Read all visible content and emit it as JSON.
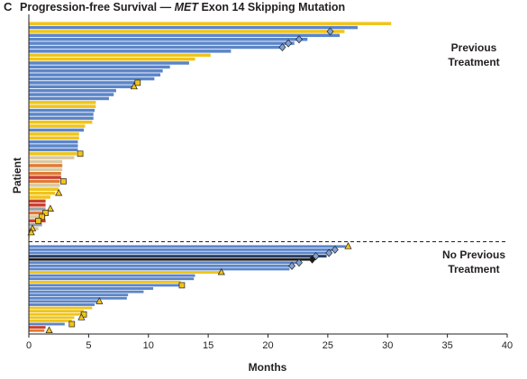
{
  "panel_letter": "C",
  "title_prefix": "Progression-free Survival — ",
  "title_gene": "MET",
  "title_suffix": " Exon 14 Skipping Mutation",
  "colors": {
    "blue": "#5b85c8",
    "yellow": "#f0c419",
    "tan": "#d9c9a3",
    "orange": "#e07a32",
    "red": "#c9412d",
    "gray": "#9aa1aa",
    "navy": "#2a3e66",
    "black": "#1b1b1b"
  },
  "chart_data": {
    "type": "bar",
    "orientation": "horizontal",
    "xlabel": "Months",
    "ylabel": "Patient",
    "xlim": [
      0,
      40
    ],
    "xticks": [
      0,
      5,
      10,
      15,
      20,
      25,
      30,
      35,
      40
    ],
    "groups": [
      {
        "label_lines": [
          "Previous",
          "Treatment"
        ],
        "bars": [
          {
            "months": 30.3,
            "color": "yellow"
          },
          {
            "months": 27.5,
            "color": "blue"
          },
          {
            "months": 26.4,
            "color": "yellow"
          },
          {
            "months": 26.0,
            "color": "blue"
          },
          {
            "months": 23.3,
            "color": "blue"
          },
          {
            "months": 22.2,
            "color": "blue"
          },
          {
            "months": 21.2,
            "color": "blue"
          },
          {
            "months": 16.9,
            "color": "blue"
          },
          {
            "months": 15.2,
            "color": "yellow"
          },
          {
            "months": 13.9,
            "color": "yellow"
          },
          {
            "months": 13.4,
            "color": "blue"
          },
          {
            "months": 11.8,
            "color": "blue"
          },
          {
            "months": 11.2,
            "color": "blue"
          },
          {
            "months": 11.0,
            "color": "blue"
          },
          {
            "months": 10.5,
            "color": "blue"
          },
          {
            "months": 9.0,
            "color": "blue"
          },
          {
            "months": 8.8,
            "color": "blue"
          },
          {
            "months": 7.3,
            "color": "blue"
          },
          {
            "months": 7.1,
            "color": "blue"
          },
          {
            "months": 6.7,
            "color": "blue"
          },
          {
            "months": 5.6,
            "color": "yellow"
          },
          {
            "months": 5.6,
            "color": "yellow"
          },
          {
            "months": 5.5,
            "color": "blue"
          },
          {
            "months": 5.4,
            "color": "blue"
          },
          {
            "months": 5.4,
            "color": "blue"
          },
          {
            "months": 5.3,
            "color": "yellow"
          },
          {
            "months": 4.7,
            "color": "yellow"
          },
          {
            "months": 4.6,
            "color": "blue"
          },
          {
            "months": 4.2,
            "color": "yellow"
          },
          {
            "months": 4.2,
            "color": "yellow"
          },
          {
            "months": 4.1,
            "color": "blue"
          },
          {
            "months": 4.1,
            "color": "blue"
          },
          {
            "months": 4.1,
            "color": "blue"
          },
          {
            "months": 4.0,
            "color": "yellow"
          },
          {
            "months": 3.8,
            "color": "tan"
          },
          {
            "months": 2.8,
            "color": "tan"
          },
          {
            "months": 2.8,
            "color": "orange"
          },
          {
            "months": 2.8,
            "color": "tan"
          },
          {
            "months": 2.7,
            "color": "orange"
          },
          {
            "months": 2.7,
            "color": "red"
          },
          {
            "months": 2.6,
            "color": "orange"
          },
          {
            "months": 2.6,
            "color": "tan"
          },
          {
            "months": 2.5,
            "color": "yellow"
          },
          {
            "months": 2.2,
            "color": "yellow"
          },
          {
            "months": 1.8,
            "color": "yellow"
          },
          {
            "months": 1.4,
            "color": "red"
          },
          {
            "months": 1.4,
            "color": "red"
          },
          {
            "months": 1.4,
            "color": "gray"
          },
          {
            "months": 1.4,
            "color": "orange"
          },
          {
            "months": 1.4,
            "color": "tan"
          },
          {
            "months": 1.4,
            "color": "red"
          },
          {
            "months": 1.1,
            "color": "gray"
          },
          {
            "months": 0.8,
            "color": "tan"
          },
          {
            "months": 0.4,
            "color": "tan"
          },
          {
            "months": 0.1,
            "color": "tan"
          }
        ],
        "markers": [
          {
            "bar": 2,
            "months": 25.2,
            "shape": "diamond"
          },
          {
            "bar": 4,
            "months": 22.6,
            "shape": "diamond"
          },
          {
            "bar": 5,
            "months": 21.7,
            "shape": "diamond"
          },
          {
            "bar": 6,
            "months": 21.2,
            "shape": "diamond"
          },
          {
            "bar": 15,
            "months": 9.1,
            "shape": "square"
          },
          {
            "bar": 16,
            "months": 8.8,
            "shape": "triangle"
          },
          {
            "bar": 33,
            "months": 4.3,
            "shape": "square"
          },
          {
            "bar": 40,
            "months": 2.9,
            "shape": "square"
          },
          {
            "bar": 43,
            "months": 2.5,
            "shape": "triangle"
          },
          {
            "bar": 47,
            "months": 1.8,
            "shape": "triangle"
          },
          {
            "bar": 48,
            "months": 1.4,
            "shape": "square"
          },
          {
            "bar": 49,
            "months": 1.1,
            "shape": "square"
          },
          {
            "bar": 50,
            "months": 0.8,
            "shape": "square"
          },
          {
            "bar": 52,
            "months": 0.3,
            "shape": "triangle"
          },
          {
            "bar": 53,
            "months": 0.2,
            "shape": "triangle"
          }
        ]
      },
      {
        "label_lines": [
          "No Previous",
          "Treatment"
        ],
        "bars": [
          {
            "months": 26.5,
            "color": "blue"
          },
          {
            "months": 25.8,
            "color": "blue"
          },
          {
            "months": 25.3,
            "color": "blue"
          },
          {
            "months": 24.9,
            "color": "navy"
          },
          {
            "months": 23.7,
            "color": "black"
          },
          {
            "months": 22.7,
            "color": "blue"
          },
          {
            "months": 22.2,
            "color": "blue"
          },
          {
            "months": 21.8,
            "color": "blue"
          },
          {
            "months": 16.1,
            "color": "yellow"
          },
          {
            "months": 13.9,
            "color": "blue"
          },
          {
            "months": 13.8,
            "color": "blue"
          },
          {
            "months": 12.7,
            "color": "yellow"
          },
          {
            "months": 12.6,
            "color": "blue"
          },
          {
            "months": 10.4,
            "color": "blue"
          },
          {
            "months": 9.6,
            "color": "blue"
          },
          {
            "months": 8.3,
            "color": "blue"
          },
          {
            "months": 8.2,
            "color": "blue"
          },
          {
            "months": 5.9,
            "color": "blue"
          },
          {
            "months": 5.5,
            "color": "blue"
          },
          {
            "months": 5.3,
            "color": "yellow"
          },
          {
            "months": 4.6,
            "color": "yellow"
          },
          {
            "months": 4.5,
            "color": "yellow"
          },
          {
            "months": 3.8,
            "color": "yellow"
          },
          {
            "months": 3.6,
            "color": "yellow"
          },
          {
            "months": 3.0,
            "color": "blue"
          },
          {
            "months": 1.4,
            "color": "red"
          },
          {
            "months": 1.3,
            "color": "orange"
          }
        ],
        "markers": [
          {
            "bar": 0,
            "months": 26.7,
            "shape": "triangle"
          },
          {
            "bar": 1,
            "months": 25.6,
            "shape": "diamond"
          },
          {
            "bar": 2,
            "months": 25.1,
            "shape": "diamond"
          },
          {
            "bar": 3,
            "months": 24.0,
            "shape": "diamond"
          },
          {
            "bar": 4,
            "months": 23.7,
            "shape": "diamond-filled"
          },
          {
            "bar": 5,
            "months": 22.6,
            "shape": "diamond"
          },
          {
            "bar": 6,
            "months": 22.0,
            "shape": "diamond"
          },
          {
            "bar": 8,
            "months": 16.1,
            "shape": "triangle"
          },
          {
            "bar": 12,
            "months": 12.8,
            "shape": "square"
          },
          {
            "bar": 17,
            "months": 5.9,
            "shape": "triangle"
          },
          {
            "bar": 21,
            "months": 4.6,
            "shape": "square"
          },
          {
            "bar": 22,
            "months": 4.4,
            "shape": "triangle"
          },
          {
            "bar": 24,
            "months": 3.6,
            "shape": "square"
          },
          {
            "bar": 26,
            "months": 1.7,
            "shape": "triangle"
          }
        ]
      }
    ]
  }
}
